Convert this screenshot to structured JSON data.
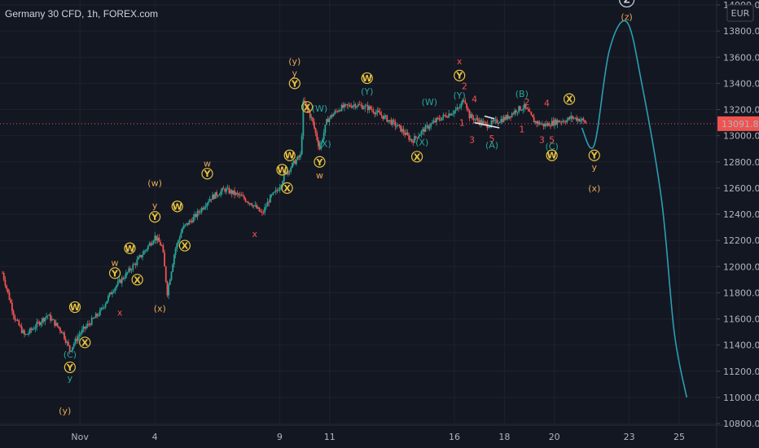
{
  "header": {
    "title": "Germany 30 CFD, 1h, FOREX.com"
  },
  "currency_badge": "EUR",
  "colors": {
    "background": "#131722",
    "up": "#26a69a",
    "down": "#ef5350",
    "projection": "#2a9fb3",
    "price_line": "#ef5350",
    "orange": "#e8a657",
    "red": "#ef5350",
    "teal": "#26a69a",
    "yellow": "#e8c340"
  },
  "chart_data": {
    "type": "candlestick",
    "title": "Germany 30 CFD, 1h, FOREX.com",
    "ylim": [
      10800,
      14000
    ],
    "y_ticks": [
      10800,
      11000,
      11200,
      11400,
      11600,
      11800,
      12000,
      12200,
      12400,
      12600,
      12800,
      13000,
      13200,
      13400,
      13600,
      13800,
      14000
    ],
    "x_ticks": [
      {
        "label": "Nov",
        "t": 1
      },
      {
        "label": "4",
        "t": 4
      },
      {
        "label": "9",
        "t": 9
      },
      {
        "label": "11",
        "t": 11
      },
      {
        "label": "16",
        "t": 16
      },
      {
        "label": "18",
        "t": 18
      },
      {
        "label": "20",
        "t": 20
      },
      {
        "label": "23",
        "t": 23
      },
      {
        "label": "25",
        "t": 25
      }
    ],
    "last_price": 13091.8,
    "path": [
      [
        -2.1,
        11950
      ],
      [
        -1.6,
        11600
      ],
      [
        -1.2,
        11470
      ],
      [
        -0.7,
        11560
      ],
      [
        -0.3,
        11630
      ],
      [
        0.3,
        11500
      ],
      [
        0.6,
        11360
      ],
      [
        1.0,
        11490
      ],
      [
        1.4,
        11570
      ],
      [
        1.8,
        11650
      ],
      [
        2.3,
        11820
      ],
      [
        2.8,
        11930
      ],
      [
        3.2,
        12020
      ],
      [
        3.6,
        12120
      ],
      [
        4.0,
        12230
      ],
      [
        4.3,
        12150
      ],
      [
        4.5,
        11800
      ],
      [
        4.8,
        12120
      ],
      [
        5.1,
        12290
      ],
      [
        5.6,
        12380
      ],
      [
        6.2,
        12520
      ],
      [
        6.8,
        12590
      ],
      [
        7.4,
        12540
      ],
      [
        7.9,
        12480
      ],
      [
        8.3,
        12400
      ],
      [
        8.6,
        12520
      ],
      [
        8.9,
        12580
      ],
      [
        9.2,
        12700
      ],
      [
        9.6,
        12800
      ],
      [
        9.85,
        12850
      ],
      [
        9.95,
        13270
      ],
      [
        10.1,
        13200
      ],
      [
        10.3,
        13120
      ],
      [
        10.6,
        12900
      ],
      [
        10.9,
        13120
      ],
      [
        11.4,
        13210
      ],
      [
        12.0,
        13240
      ],
      [
        12.6,
        13210
      ],
      [
        13.2,
        13140
      ],
      [
        13.8,
        13060
      ],
      [
        14.3,
        12960
      ],
      [
        14.8,
        13050
      ],
      [
        15.3,
        13120
      ],
      [
        15.8,
        13170
      ],
      [
        16.2,
        13210
      ],
      [
        16.4,
        13290
      ],
      [
        16.6,
        13150
      ],
      [
        16.9,
        13120
      ],
      [
        17.3,
        13080
      ],
      [
        17.7,
        13110
      ],
      [
        18.1,
        13140
      ],
      [
        18.5,
        13200
      ],
      [
        18.8,
        13220
      ],
      [
        19.2,
        13110
      ],
      [
        19.6,
        13080
      ],
      [
        20.1,
        13110
      ],
      [
        20.5,
        13120
      ],
      [
        20.7,
        13140
      ],
      [
        21.1,
        13120
      ],
      [
        21.3,
        13091.8
      ]
    ],
    "projection": [
      [
        21.1,
        13060
      ],
      [
        21.6,
        12930
      ],
      [
        22.2,
        13650
      ],
      [
        22.9,
        13870
      ],
      [
        23.5,
        13400
      ],
      [
        24.3,
        12500
      ],
      [
        24.8,
        11500
      ],
      [
        25.3,
        11000
      ]
    ],
    "wedge_lines": [
      [
        [
          16.8,
          13100
        ],
        [
          17.8,
          13060
        ]
      ],
      [
        [
          17.2,
          13150
        ],
        [
          17.6,
          13130
        ]
      ]
    ],
    "annotations": [
      {
        "text": "(y)",
        "t": 0.4,
        "p": 10900,
        "color": "orange",
        "circle": false
      },
      {
        "text": "y",
        "t": 0.6,
        "p": 11150,
        "color": "teal",
        "circle": false
      },
      {
        "text": "Y",
        "t": 0.6,
        "p": 11230,
        "color": "yellow",
        "circle": true
      },
      {
        "text": "(C)",
        "t": 0.6,
        "p": 11330,
        "color": "teal",
        "circle": false
      },
      {
        "text": "W",
        "t": 0.8,
        "p": 11690,
        "color": "yellow",
        "circle": true
      },
      {
        "text": "X",
        "t": 1.2,
        "p": 11420,
        "color": "yellow",
        "circle": true
      },
      {
        "text": "x",
        "t": 2.6,
        "p": 11650,
        "color": "red",
        "circle": false
      },
      {
        "text": "Y",
        "t": 2.4,
        "p": 11950,
        "color": "yellow",
        "circle": true
      },
      {
        "text": "w",
        "t": 2.4,
        "p": 12030,
        "color": "orange",
        "circle": false
      },
      {
        "text": "X",
        "t": 3.3,
        "p": 11900,
        "color": "yellow",
        "circle": true
      },
      {
        "text": "W",
        "t": 3.0,
        "p": 12140,
        "color": "yellow",
        "circle": true
      },
      {
        "text": "(x)",
        "t": 4.2,
        "p": 11680,
        "color": "orange",
        "circle": false
      },
      {
        "text": "Y",
        "t": 4.0,
        "p": 12380,
        "color": "yellow",
        "circle": true
      },
      {
        "text": "y",
        "t": 4.0,
        "p": 12470,
        "color": "orange",
        "circle": false
      },
      {
        "text": "(w)",
        "t": 4.0,
        "p": 12640,
        "color": "orange",
        "circle": false
      },
      {
        "text": "X",
        "t": 5.2,
        "p": 12160,
        "color": "yellow",
        "circle": true
      },
      {
        "text": "W",
        "t": 4.9,
        "p": 12460,
        "color": "yellow",
        "circle": true
      },
      {
        "text": "Y",
        "t": 6.1,
        "p": 12710,
        "color": "yellow",
        "circle": true
      },
      {
        "text": "w",
        "t": 6.1,
        "p": 12790,
        "color": "orange",
        "circle": false
      },
      {
        "text": "x",
        "t": 8.0,
        "p": 12250,
        "color": "red",
        "circle": false
      },
      {
        "text": "X",
        "t": 9.3,
        "p": 12600,
        "color": "yellow",
        "circle": true
      },
      {
        "text": "W",
        "t": 9.1,
        "p": 12740,
        "color": "yellow",
        "circle": true
      },
      {
        "text": "W",
        "t": 9.4,
        "p": 12850,
        "color": "yellow",
        "circle": true
      },
      {
        "text": "Y",
        "t": 9.6,
        "p": 13400,
        "color": "yellow",
        "circle": true
      },
      {
        "text": "y",
        "t": 9.6,
        "p": 13480,
        "color": "orange",
        "circle": false
      },
      {
        "text": "(y)",
        "t": 9.6,
        "p": 13570,
        "color": "orange",
        "circle": false
      },
      {
        "text": "X",
        "t": 10.1,
        "p": 13220,
        "color": "yellow",
        "circle": true
      },
      {
        "text": "(W)",
        "t": 10.6,
        "p": 13210,
        "color": "teal",
        "circle": false
      },
      {
        "text": "(X)",
        "t": 10.8,
        "p": 12940,
        "color": "teal",
        "circle": false
      },
      {
        "text": "Y",
        "t": 10.6,
        "p": 12800,
        "color": "yellow",
        "circle": true
      },
      {
        "text": "w",
        "t": 10.6,
        "p": 12700,
        "color": "orange",
        "circle": false
      },
      {
        "text": "W",
        "t": 12.5,
        "p": 13440,
        "color": "yellow",
        "circle": true
      },
      {
        "text": "(Y)",
        "t": 12.5,
        "p": 13340,
        "color": "teal",
        "circle": false
      },
      {
        "text": "(X)",
        "t": 14.7,
        "p": 12950,
        "color": "teal",
        "circle": false
      },
      {
        "text": "X",
        "t": 14.5,
        "p": 12840,
        "color": "yellow",
        "circle": true
      },
      {
        "text": "(W)",
        "t": 15.0,
        "p": 13260,
        "color": "teal",
        "circle": false
      },
      {
        "text": "x",
        "t": 16.2,
        "p": 13570,
        "color": "red",
        "circle": false
      },
      {
        "text": "Y",
        "t": 16.2,
        "p": 13460,
        "color": "yellow",
        "circle": true
      },
      {
        "text": "(Y)",
        "t": 16.2,
        "p": 13310,
        "color": "teal",
        "circle": false
      },
      {
        "text": "2",
        "t": 16.4,
        "p": 13380,
        "color": "red",
        "circle": false
      },
      {
        "text": "4",
        "t": 16.8,
        "p": 13280,
        "color": "red",
        "circle": false
      },
      {
        "text": "1",
        "t": 16.3,
        "p": 13100,
        "color": "red",
        "circle": false
      },
      {
        "text": "3",
        "t": 16.7,
        "p": 12970,
        "color": "red",
        "circle": false
      },
      {
        "text": "5",
        "t": 17.5,
        "p": 12980,
        "color": "red",
        "circle": false
      },
      {
        "text": "(A)",
        "t": 17.5,
        "p": 12930,
        "color": "teal",
        "circle": false
      },
      {
        "text": "(B)",
        "t": 18.7,
        "p": 13320,
        "color": "teal",
        "circle": false
      },
      {
        "text": "2",
        "t": 18.9,
        "p": 13260,
        "color": "red",
        "circle": false
      },
      {
        "text": "4",
        "t": 19.7,
        "p": 13250,
        "color": "red",
        "circle": false
      },
      {
        "text": "1",
        "t": 18.7,
        "p": 13050,
        "color": "red",
        "circle": false
      },
      {
        "text": "3",
        "t": 19.5,
        "p": 12970,
        "color": "red",
        "circle": false
      },
      {
        "text": "5",
        "t": 19.9,
        "p": 12970,
        "color": "red",
        "circle": false
      },
      {
        "text": "(C)",
        "t": 19.9,
        "p": 12920,
        "color": "teal",
        "circle": false
      },
      {
        "text": "W",
        "t": 19.9,
        "p": 12850,
        "color": "yellow",
        "circle": true
      },
      {
        "text": "X",
        "t": 20.6,
        "p": 13280,
        "color": "yellow",
        "circle": true
      },
      {
        "text": "Y",
        "t": 21.6,
        "p": 12850,
        "color": "yellow",
        "circle": true
      },
      {
        "text": "y",
        "t": 21.6,
        "p": 12760,
        "color": "orange",
        "circle": false
      },
      {
        "text": "(x)",
        "t": 21.6,
        "p": 12600,
        "color": "orange",
        "circle": false
      },
      {
        "text": "(z)",
        "t": 22.9,
        "p": 13910,
        "color": "orange",
        "circle": false
      },
      {
        "text": "Z",
        "t": 22.9,
        "p": 14040,
        "color": "white",
        "circle": true
      }
    ]
  }
}
